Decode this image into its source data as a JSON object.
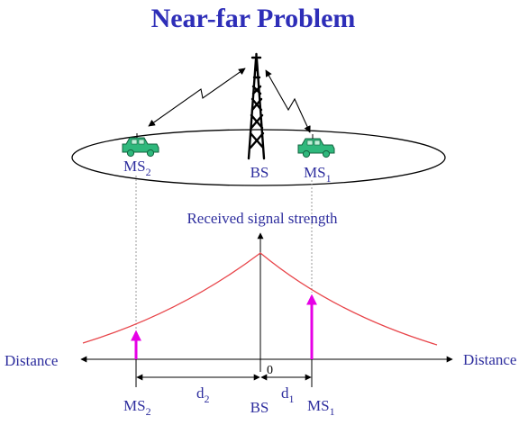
{
  "title": "Near-far Problem",
  "labels": {
    "ms2_top": {
      "base": "MS",
      "sub": "2"
    },
    "bs_top": "BS",
    "ms1_top": {
      "base": "MS",
      "sub": "1"
    },
    "ylabel": "Received signal strength",
    "distance_left": "Distance",
    "distance_right": "Distance",
    "origin": "0",
    "ms2_bottom": {
      "base": "MS",
      "sub": "2"
    },
    "d2": {
      "base": "d",
      "sub": "2"
    },
    "bs_bottom": "BS",
    "d1": {
      "base": "d",
      "sub": "1"
    },
    "ms1_bottom": {
      "base": "MS",
      "sub": "1"
    }
  },
  "colors": {
    "title": "#2e2eb8",
    "text": "#2e2e9e",
    "curve": "#e8454a",
    "arrow": "#e600e6",
    "car": "#2fb87c",
    "black": "#000000"
  },
  "icons": [
    "tower-icon",
    "car-icon",
    "lightning-link-icon"
  ]
}
